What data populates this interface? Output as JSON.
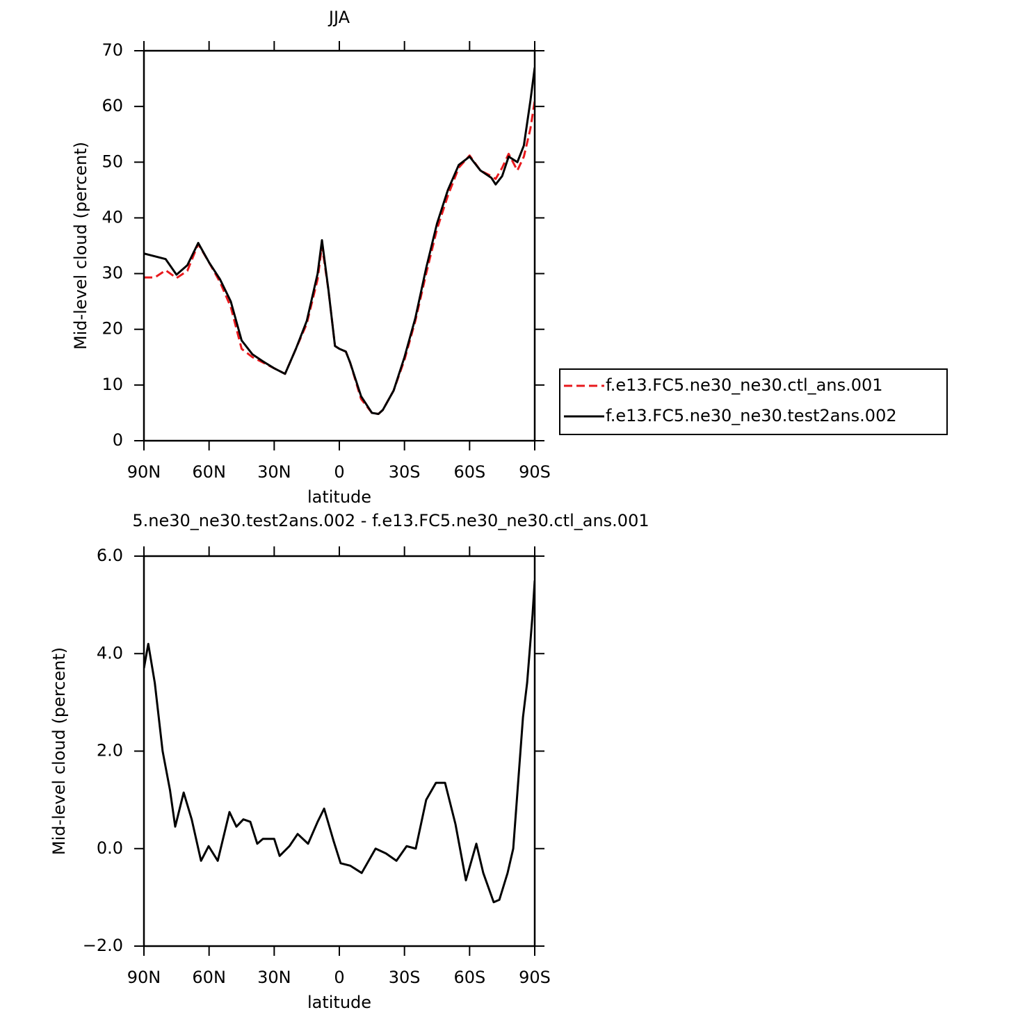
{
  "chart_data": [
    {
      "type": "line",
      "title": "JJA",
      "xlabel": "latitude",
      "ylabel": "Mid-level cloud (percent)",
      "x": [
        90,
        85,
        80,
        75,
        70,
        65,
        60,
        55,
        50,
        45,
        40,
        35,
        30,
        25,
        20,
        15,
        10,
        8,
        5,
        2,
        0,
        -3,
        -5,
        -10,
        -15,
        -18,
        -20,
        -25,
        -30,
        -35,
        -40,
        -45,
        -50,
        -55,
        -60,
        -65,
        -70,
        -72,
        -75,
        -78,
        -82,
        -85,
        -88,
        -90
      ],
      "series": [
        {
          "name": "f.e13.FC5.ne30_ne30.ctl_ans.001",
          "color": "#e8191d",
          "linestyle": "dashed",
          "values": [
            29.3,
            29.3,
            30.6,
            29.2,
            30.5,
            35.3,
            32,
            28.5,
            24,
            16.5,
            15,
            14,
            13,
            12,
            16.5,
            21,
            29,
            35,
            27,
            17,
            16.5,
            16,
            14,
            7.5,
            5,
            4.8,
            5.5,
            9,
            14.5,
            21.5,
            30,
            38,
            44,
            49,
            51.2,
            48.5,
            47.5,
            47,
            49,
            51.5,
            48.5,
            51,
            56,
            61
          ]
        },
        {
          "name": "f.e13.FC5.ne30_ne30.test2ans.002",
          "color": "#000000",
          "linestyle": "solid",
          "values": [
            33.6,
            33.1,
            32.6,
            29.8,
            31.5,
            35.5,
            32,
            29,
            25,
            18,
            15.5,
            14.2,
            13,
            12,
            16.5,
            21.5,
            30,
            36,
            27,
            17,
            16.5,
            16,
            14,
            8,
            5,
            4.8,
            5.5,
            9,
            15,
            22,
            31,
            39,
            45,
            49.5,
            51,
            48.5,
            47.2,
            46,
            47.5,
            51,
            50,
            53,
            61,
            67
          ]
        }
      ],
      "xlim": [
        90,
        -90
      ],
      "xticks": [
        {
          "value": 90,
          "label": "90N"
        },
        {
          "value": 60,
          "label": "60N"
        },
        {
          "value": 30,
          "label": "30N"
        },
        0,
        {
          "value": -30,
          "label": "30S"
        },
        {
          "value": -60,
          "label": "60S"
        },
        {
          "value": -90,
          "label": "90S"
        }
      ],
      "ylim": [
        0,
        70
      ],
      "yticks": [
        0,
        10,
        20,
        30,
        40,
        50,
        60,
        70
      ],
      "legend": "right"
    },
    {
      "type": "line",
      "title": "5.ne30_ne30.test2ans.002 - f.e13.FC5.ne30_ne30.ctl_ans.001",
      "xlabel": "latitude",
      "ylabel": "Mid-level cloud (percent)",
      "x": [
        90,
        88,
        85,
        81.4,
        78,
        75.6,
        71.7,
        68,
        63.7,
        60.2,
        56,
        50.6,
        47.4,
        44.2,
        41,
        37.8,
        35.2,
        30,
        27.5,
        23,
        19.2,
        14.4,
        10,
        7,
        2.6,
        -0.6,
        -5,
        -10.3,
        -16.7,
        -21.5,
        -26.3,
        -31,
        -35.2,
        -40,
        -44.5,
        -48.7,
        -53.5,
        -58.3,
        -63.1,
        -66.3,
        -71.1,
        -73.7,
        -77.5,
        -80.1,
        -84.6,
        -86.5,
        -89,
        -90
      ],
      "series": [
        {
          "color": "#000000",
          "linestyle": "solid",
          "values": [
            3.7,
            4.2,
            3.4,
            2.0,
            1.2,
            0.45,
            1.15,
            0.6,
            -0.25,
            0.05,
            -0.25,
            0.75,
            0.45,
            0.6,
            0.55,
            0.1,
            0.2,
            0.2,
            -0.15,
            0.05,
            0.3,
            0.1,
            0.55,
            0.82,
            0.15,
            -0.3,
            -0.35,
            -0.5,
            0.0,
            -0.1,
            -0.25,
            0.05,
            0.0,
            1.0,
            1.35,
            1.35,
            0.5,
            -0.65,
            0.1,
            -0.5,
            -1.1,
            -1.05,
            -0.5,
            0.0,
            2.7,
            3.4,
            4.8,
            5.5
          ]
        }
      ],
      "xlim": [
        90,
        -90
      ],
      "xticks": [
        {
          "value": 90,
          "label": "90N"
        },
        {
          "value": 60,
          "label": "60N"
        },
        {
          "value": 30,
          "label": "30N"
        },
        0,
        {
          "value": -30,
          "label": "30S"
        },
        {
          "value": -60,
          "label": "60S"
        },
        {
          "value": -90,
          "label": "90S"
        }
      ],
      "ylim": [
        -2,
        6
      ],
      "yticks": [
        {
          "value": -2,
          "label": "−2.0"
        },
        {
          "value": 0,
          "label": "0.0"
        },
        {
          "value": 2,
          "label": "2.0"
        },
        {
          "value": 4,
          "label": "4.0"
        },
        {
          "value": 6,
          "label": "6.0"
        }
      ]
    }
  ]
}
